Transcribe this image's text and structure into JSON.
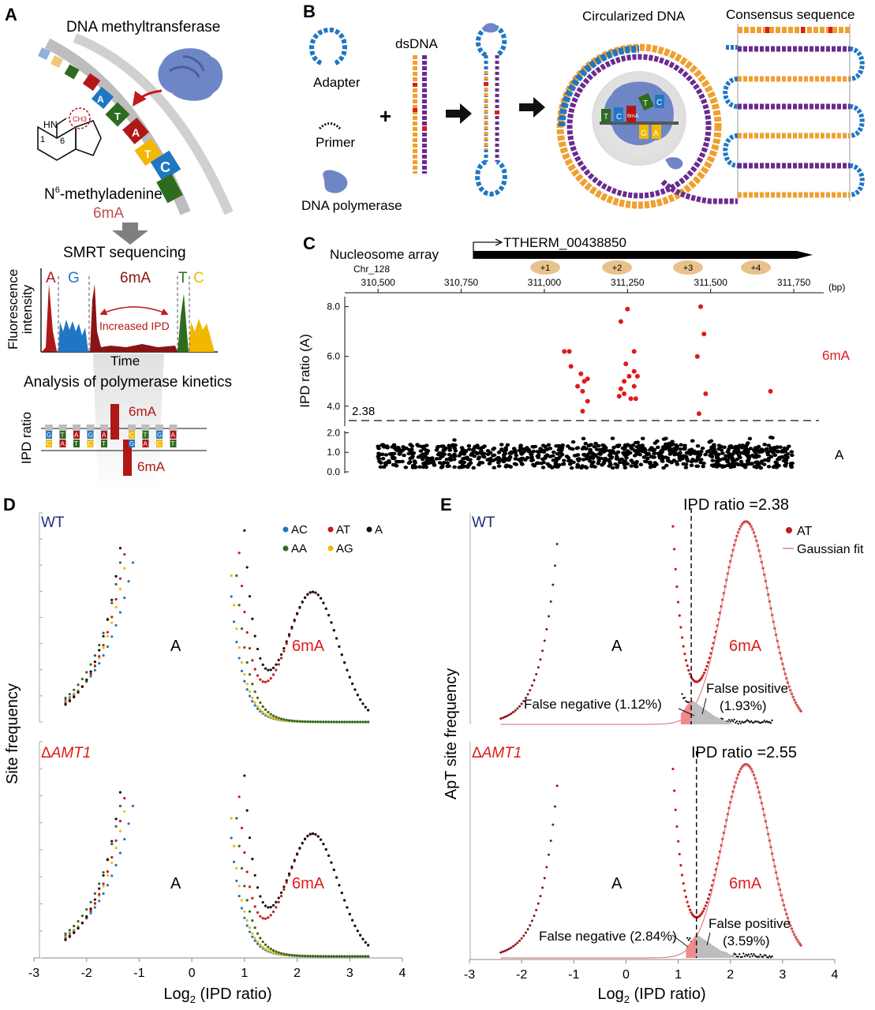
{
  "panels": {
    "a": "A",
    "b": "B",
    "c": "C",
    "d": "D",
    "e": "E"
  },
  "panel_a": {
    "enzyme_label": "DNA methyltransferase",
    "bases_strand": [
      "A",
      "T",
      "A",
      "T",
      "C",
      "G"
    ],
    "methyl_group": "CH3",
    "ring_atom_1": "1",
    "ring_atom_6": "6",
    "h_label": "H",
    "n_label": "N",
    "chem_name_n": "N",
    "chem_name_sup": "6",
    "chem_name_rest": "-methyladenine",
    "mod_label": "6mA",
    "smrt_title": "SMRT sequencing",
    "fluor_ylabel_1": "Fluorescence",
    "fluor_ylabel_2": "intensity",
    "peak_labels": [
      "A",
      "G",
      "6mA",
      "T",
      "C"
    ],
    "increased_ipd": "Increased IPD",
    "time_label": "Time",
    "kinetics_title": "Analysis of polymerase kinetics",
    "ipd_ylabel": "IPD ratio",
    "top_bases": [
      "G",
      "T",
      "A",
      "G",
      "A",
      "T",
      "C",
      "T",
      "G",
      "A"
    ],
    "bottom_bases": [
      "C",
      "A",
      "T",
      "C",
      "T",
      "A",
      "G",
      "A",
      "C",
      "T"
    ],
    "top_mod": "6mA",
    "bottom_mod": "6mA"
  },
  "panel_b": {
    "adapter": "Adapter",
    "primer": "Primer",
    "dsdna": "dsDNA",
    "polymerase": "DNA polymerase",
    "plus": "+",
    "circularized": "Circularized DNA",
    "consensus": "Consensus sequence",
    "enzyme_bases": [
      "T",
      "C",
      "6mA",
      "G",
      "A"
    ],
    "enzyme_top_bases": [
      "T",
      "C",
      "T"
    ]
  },
  "panel_c": {
    "array_label": "Nucleosome array",
    "chr_label": "Chr_128",
    "gene_label": "TTHERM_00438850",
    "nucleosomes": [
      "+1",
      "+2",
      "+3",
      "+4"
    ],
    "x_ticks": [
      310500,
      310750,
      311000,
      311250,
      311500,
      311750
    ],
    "x_tick_labels": [
      "310,500",
      "310,750",
      "311,000",
      "311,250",
      "311,500",
      "311,750"
    ],
    "x_unit": "(bp)",
    "y_ticks_upper": [
      "8.0",
      "6.0",
      "4.0"
    ],
    "y_ticks_lower": [
      "2.0",
      "1.0",
      "0.0"
    ],
    "ylabel": "IPD ratio (A)",
    "threshold": "2.38",
    "threshold_value": 2.38,
    "label_6ma": "6mA",
    "label_a": "A"
  },
  "panel_d": {
    "wt_label": "WT",
    "mutant_prefix": "Δ",
    "mutant_name": "AMT1",
    "ylabel": "Site frequency",
    "xlabel_base": "Log",
    "xlabel_sub": "2",
    "xlabel_rest": " (IPD ratio)",
    "x_tick_labels": [
      "-3",
      "-2",
      "-1",
      "0",
      "1",
      "2",
      "3",
      "4"
    ],
    "legend": [
      {
        "label": "AC",
        "color": "#1f77c4"
      },
      {
        "label": "AT",
        "color": "#c41a1a"
      },
      {
        "label": "A",
        "color": "#111111"
      },
      {
        "label": "AA",
        "color": "#2e6b1f"
      },
      {
        "label": "AG",
        "color": "#f2b800"
      }
    ],
    "label_a": "A",
    "label_6ma": "6mA"
  },
  "panel_e": {
    "wt_label": "WT",
    "mutant_prefix": "Δ",
    "mutant_name": "AMT1",
    "ylabel": "ApT site frequency",
    "xlabel_base": "Log",
    "xlabel_sub": "2",
    "xlabel_rest": " (IPD ratio)",
    "x_tick_labels": [
      "-3",
      "-2",
      "-1",
      "0",
      "1",
      "2",
      "3",
      "4"
    ],
    "legend_at": "AT",
    "legend_fit": "Gaussian fit",
    "wt_threshold": "IPD ratio =2.38",
    "mut_threshold": "IPD ratio =2.55",
    "wt_fn": "False negative (1.12%)",
    "wt_fp_1": "False positive",
    "wt_fp_2": "(1.93%)",
    "mut_fn": "False negative (2.84%)",
    "mut_fp_1": "False positive",
    "mut_fp_2": "(3.59%)",
    "label_a": "A",
    "label_6ma": "6mA"
  },
  "colors": {
    "red": "#c41a1a",
    "dark_red": "#8b1313",
    "blue": "#1f77c4",
    "green": "#2e6b1f",
    "yellow": "#f2b800",
    "orange": "#f0a030",
    "purple": "#6a2b8e",
    "navy": "#1f2f7a",
    "bead": "#e8c28c"
  }
}
